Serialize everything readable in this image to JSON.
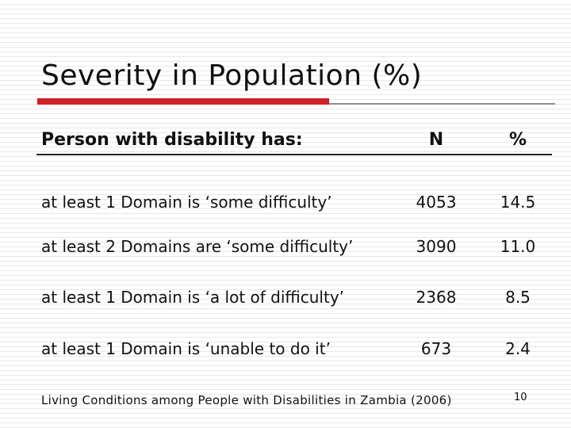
{
  "slide": {
    "title": "Severity in Population (%)",
    "header": {
      "col_label": "Person with disability has:",
      "col_n": "N",
      "col_pct": "%"
    },
    "rows": [
      {
        "label": "at least 1 Domain is ‘some difficulty’",
        "n": "4053",
        "pct": "14.5"
      },
      {
        "label": "at least 2 Domains are ‘some difficulty’",
        "n": "3090",
        "pct": "11.0"
      },
      {
        "label": "at least 1 Domain is ‘a lot of difficulty’",
        "n": "2368",
        "pct": "8.5"
      },
      {
        "label": "at least 1 Domain is ‘unable to do it’",
        "n": "673",
        "pct": "2.4"
      }
    ],
    "footer": "Living Conditions among People with Disabilities in Zambia (2006)",
    "page_number": "10"
  },
  "colors": {
    "accent_rule": "#d21f26",
    "secondary_rule": "#8c8c8c",
    "text": "#111111",
    "background_stripe": "#e7e7e7"
  }
}
